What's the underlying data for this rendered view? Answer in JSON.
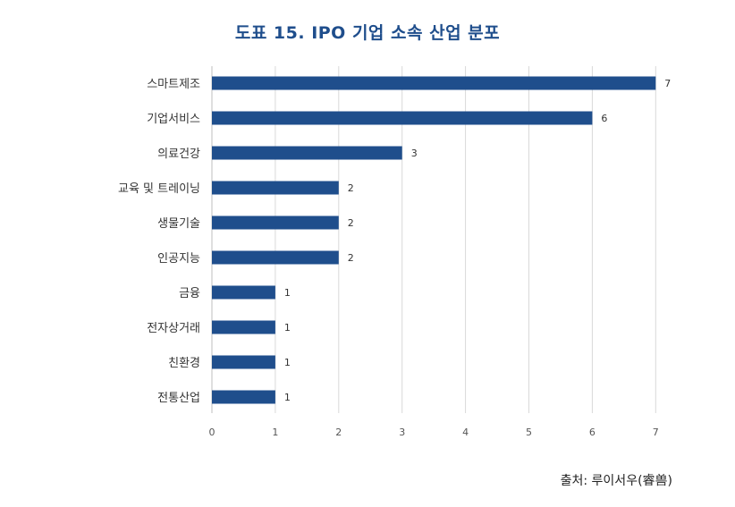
{
  "chart_data": {
    "type": "bar",
    "orientation": "horizontal",
    "title": "도표 15. IPO 기업 소속 산업 분포",
    "categories": [
      "스마트제조",
      "기업서비스",
      "의료건강",
      "교육 및 트레이닝",
      "생물기술",
      "인공지능",
      "금융",
      "전자상거래",
      "친환경",
      "전통산업"
    ],
    "values": [
      7,
      6,
      3,
      2,
      2,
      2,
      1,
      1,
      1,
      1
    ],
    "xlim": [
      0,
      7
    ],
    "xticks": [
      0,
      1,
      2,
      3,
      4,
      5,
      6,
      7
    ],
    "grid": true,
    "bar_color": "#1f4e8c",
    "xlabel": "",
    "ylabel": ""
  },
  "source": "출처: 루이서우(睿兽)"
}
